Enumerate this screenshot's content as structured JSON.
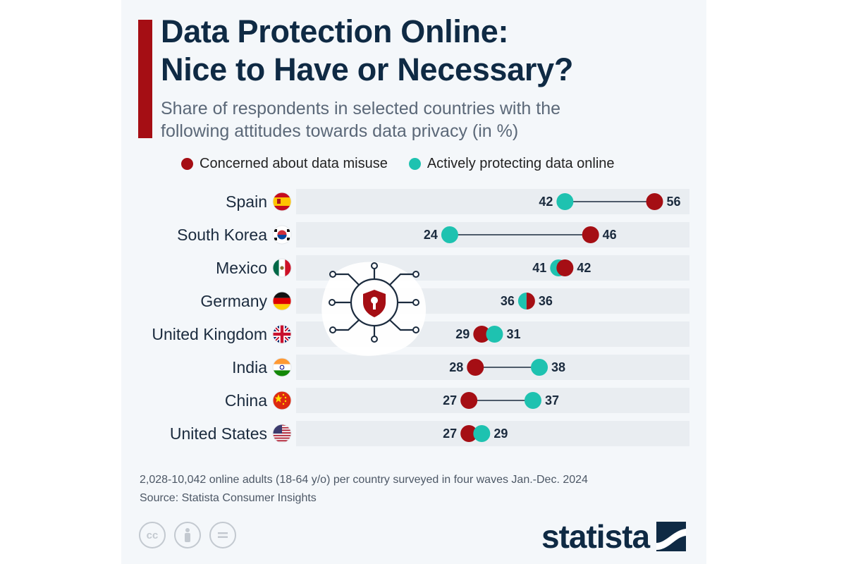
{
  "header": {
    "title_line1": "Data Protection Online:",
    "title_line2": "Nice to Have or Necessary?",
    "subtitle_line1": "Share of respondents in selected countries with the",
    "subtitle_line2": "following attitudes towards data privacy (in %)"
  },
  "colors": {
    "concerned": "#a50e14",
    "protecting": "#1ec2b0",
    "accent": "#a50e14",
    "title": "#0f2a44"
  },
  "chart_data": {
    "type": "dumbbell",
    "xlim": [
      0,
      60
    ],
    "grid": false,
    "legend_position": "top",
    "categories": [
      "Spain",
      "South Korea",
      "Mexico",
      "Germany",
      "United Kingdom",
      "India",
      "China",
      "United States"
    ],
    "series": [
      {
        "name": "Concerned about data misuse",
        "values": [
          56,
          46,
          42,
          36,
          29,
          28,
          27,
          27
        ]
      },
      {
        "name": "Actively protecting data online",
        "values": [
          42,
          24,
          41,
          36,
          31,
          38,
          37,
          29
        ]
      }
    ],
    "flags": [
      "spain-flag-icon",
      "south-korea-flag-icon",
      "mexico-flag-icon",
      "germany-flag-icon",
      "united-kingdom-flag-icon",
      "india-flag-icon",
      "china-flag-icon",
      "united-states-flag-icon"
    ],
    "decoration_icon": "shield-keyhole-circuit-icon"
  },
  "footer": {
    "note": "2,028-10,042 online adults (18-64 y/o) per country surveyed in four waves Jan.-Dec. 2024",
    "source": "Source: Statista Consumer Insights",
    "cc_icons": [
      "cc-icon",
      "attribution-icon",
      "no-derivatives-icon"
    ],
    "brand": "statista"
  }
}
